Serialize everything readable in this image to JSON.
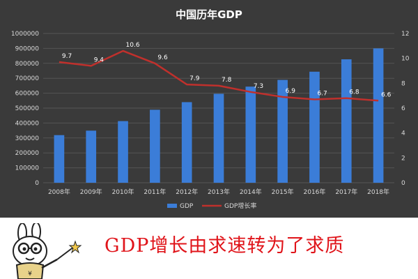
{
  "colors": {
    "background": "#3a3a3a",
    "bar": "#3b7dd8",
    "line": "#c0302c",
    "text": "#d9d9d9",
    "grid": "#555555",
    "caption": "#e0141a"
  },
  "chart_data": {
    "type": "bar",
    "title": "中国历年GDP",
    "categories": [
      "2008年",
      "2009年",
      "2010年",
      "2011年",
      "2012年",
      "2013年",
      "2014年",
      "2015年",
      "2016年",
      "2017年",
      "2018年"
    ],
    "series": [
      {
        "name": "GDP",
        "type": "bar",
        "axis": "left",
        "values": [
          319000,
          349000,
          413000,
          489000,
          540000,
          596000,
          644000,
          689000,
          744000,
          827000,
          900000
        ]
      },
      {
        "name": "GDP增长率",
        "type": "line",
        "axis": "right",
        "values": [
          9.7,
          9.4,
          10.6,
          9.6,
          7.9,
          7.8,
          7.3,
          6.9,
          6.7,
          6.8,
          6.6
        ],
        "labels": [
          "9.7",
          "9.4",
          "10.6",
          "9.6",
          "7.9",
          "7.8",
          "7.3",
          "6.9",
          "6.7",
          "6.8",
          "6.6"
        ]
      }
    ],
    "y_left": {
      "ylim": [
        0,
        1000000
      ],
      "ticks": [
        "0",
        "100000",
        "200000",
        "300000",
        "400000",
        "500000",
        "600000",
        "700000",
        "800000",
        "900000",
        "1000000"
      ]
    },
    "y_right": {
      "ylim": [
        0,
        12
      ],
      "ticks": [
        "0",
        "2",
        "4",
        "6",
        "8",
        "10",
        "12"
      ]
    },
    "grid": true,
    "legend": {
      "placement": "bottom",
      "items": [
        "GDP",
        "GDP增长率"
      ]
    }
  },
  "caption": {
    "text": "GDP增长由求速转为了求质"
  }
}
